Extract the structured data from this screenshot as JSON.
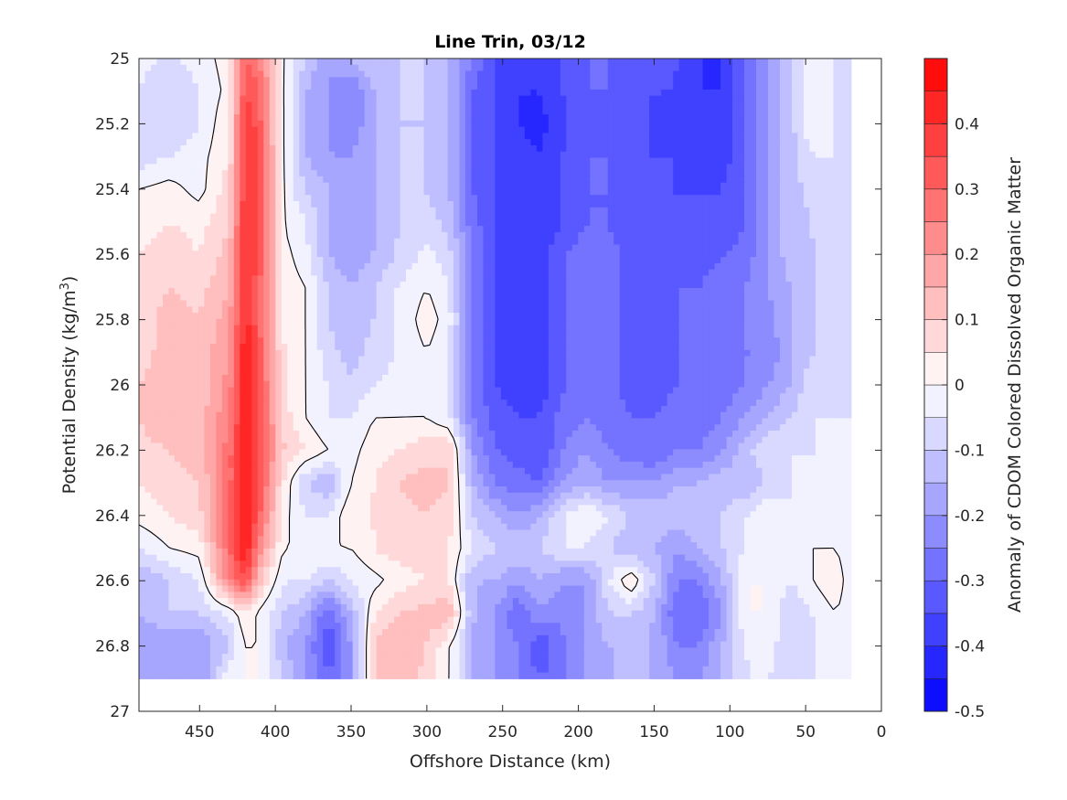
{
  "chart_data": {
    "type": "heatmap",
    "title": "Line Trin, 03/12",
    "xlabel": "Offshore Distance (km)",
    "ylabel": "Potential Density (kg/m^3)",
    "ylabel_parts": {
      "main": "Potential Density (kg/m",
      "sup": "3",
      "end": ")"
    },
    "colorbar_label": "Anomaly of CDOM Colored Dissolved Organic Matter",
    "xlim": [
      490,
      0
    ],
    "x_reversed": true,
    "ylim": [
      27,
      25
    ],
    "y_reversed": true,
    "x_ticks": [
      450,
      400,
      350,
      300,
      250,
      200,
      150,
      100,
      50,
      0
    ],
    "x_tick_labels": [
      "450",
      "400",
      "350",
      "300",
      "250",
      "200",
      "150",
      "100",
      "50",
      "0"
    ],
    "y_ticks": [
      25,
      25.2,
      25.4,
      25.6,
      25.8,
      26,
      26.2,
      26.4,
      26.6,
      26.8,
      27
    ],
    "y_tick_labels": [
      "25",
      "25.2",
      "25.4",
      "25.6",
      "25.8",
      "26",
      "26.2",
      "26.4",
      "26.6",
      "26.8",
      "27"
    ],
    "clim": [
      -0.5,
      0.5
    ],
    "colorbar_ticks": [
      0.4,
      0.3,
      0.2,
      0.1,
      0,
      -0.1,
      -0.2,
      -0.3,
      -0.4,
      -0.5
    ],
    "colorbar_tick_labels": [
      "0.4",
      "0.3",
      "0.2",
      "0.1",
      "0",
      "-0.1",
      "-0.2",
      "-0.3",
      "-0.4",
      "-0.5"
    ],
    "contour_levels": 20,
    "colormap": "blue-white-red (bwr), discrete",
    "zero_contour_color": "#000000",
    "grid": false,
    "data_extent_y": [
      25,
      26.9
    ],
    "x": [
      490,
      470,
      450,
      430,
      420,
      410,
      395,
      380,
      365,
      350,
      335,
      320,
      300,
      285,
      270,
      255,
      240,
      225,
      210,
      195,
      180,
      165,
      150,
      135,
      120,
      105,
      90,
      75,
      60,
      45,
      30,
      20
    ],
    "y": [
      25.0,
      25.1,
      25.2,
      25.3,
      25.4,
      25.5,
      25.6,
      25.7,
      25.8,
      25.9,
      26.0,
      26.1,
      26.2,
      26.3,
      26.4,
      26.5,
      26.6,
      26.7,
      26.8,
      26.9
    ],
    "values": [
      [
        -0.03,
        -0.06,
        -0.03,
        0.03,
        0.3,
        0.25,
        0.0,
        -0.1,
        -0.2,
        -0.15,
        -0.1,
        -0.1,
        -0.1,
        -0.15,
        -0.25,
        -0.35,
        -0.35,
        -0.4,
        -0.35,
        -0.3,
        -0.3,
        -0.35,
        -0.3,
        -0.35,
        -0.4,
        -0.4,
        -0.3,
        -0.2,
        -0.12,
        0.0,
        -0.05,
        -0.08
      ],
      [
        -0.05,
        -0.1,
        -0.05,
        0.02,
        0.35,
        0.3,
        0.0,
        -0.15,
        -0.2,
        -0.25,
        -0.15,
        -0.1,
        -0.1,
        -0.15,
        -0.3,
        -0.35,
        -0.4,
        -0.4,
        -0.35,
        -0.3,
        -0.3,
        -0.35,
        -0.35,
        -0.35,
        -0.4,
        -0.4,
        -0.3,
        -0.2,
        -0.12,
        0.0,
        -0.05,
        -0.1
      ],
      [
        -0.1,
        -0.1,
        -0.05,
        0.05,
        0.4,
        0.32,
        0.0,
        -0.15,
        -0.2,
        -0.25,
        -0.15,
        -0.1,
        -0.1,
        -0.15,
        -0.3,
        -0.35,
        -0.4,
        -0.42,
        -0.35,
        -0.3,
        -0.32,
        -0.35,
        -0.35,
        -0.38,
        -0.38,
        -0.38,
        -0.3,
        -0.2,
        -0.12,
        0.0,
        -0.05,
        -0.1
      ],
      [
        -0.08,
        -0.05,
        -0.02,
        0.05,
        0.4,
        0.33,
        0.0,
        -0.15,
        -0.2,
        -0.2,
        -0.15,
        -0.1,
        -0.1,
        -0.15,
        -0.3,
        -0.35,
        -0.38,
        -0.4,
        -0.35,
        -0.3,
        -0.3,
        -0.35,
        -0.35,
        -0.35,
        -0.38,
        -0.38,
        -0.3,
        -0.2,
        -0.12,
        -0.05,
        -0.05,
        -0.1
      ],
      [
        0.0,
        0.02,
        -0.02,
        0.08,
        0.4,
        0.33,
        0.0,
        -0.1,
        -0.15,
        -0.2,
        -0.15,
        -0.1,
        -0.1,
        -0.15,
        -0.3,
        -0.35,
        -0.38,
        -0.4,
        -0.35,
        -0.3,
        -0.3,
        -0.35,
        -0.35,
        -0.35,
        -0.35,
        -0.35,
        -0.3,
        -0.2,
        -0.12,
        -0.08,
        -0.05,
        -0.1
      ],
      [
        0.02,
        0.05,
        0.03,
        0.1,
        0.42,
        0.33,
        0.0,
        -0.05,
        -0.15,
        -0.2,
        -0.15,
        -0.1,
        -0.08,
        -0.12,
        -0.28,
        -0.35,
        -0.38,
        -0.4,
        -0.35,
        -0.3,
        -0.3,
        -0.35,
        -0.35,
        -0.35,
        -0.35,
        -0.35,
        -0.3,
        -0.2,
        -0.12,
        -0.1,
        -0.05,
        -0.1
      ],
      [
        0.05,
        0.08,
        0.05,
        0.12,
        0.42,
        0.33,
        0.02,
        -0.03,
        -0.15,
        -0.2,
        -0.15,
        -0.1,
        -0.03,
        -0.08,
        -0.25,
        -0.35,
        -0.38,
        -0.38,
        -0.3,
        -0.28,
        -0.28,
        -0.32,
        -0.35,
        -0.32,
        -0.32,
        -0.3,
        -0.28,
        -0.2,
        -0.12,
        -0.1,
        -0.08,
        -0.08
      ],
      [
        0.05,
        0.1,
        0.08,
        0.15,
        0.42,
        0.3,
        0.03,
        0.0,
        -0.1,
        -0.15,
        -0.1,
        -0.05,
        0.0,
        -0.05,
        -0.25,
        -0.35,
        -0.38,
        -0.38,
        -0.3,
        -0.28,
        -0.28,
        -0.32,
        -0.32,
        -0.3,
        -0.3,
        -0.28,
        -0.25,
        -0.2,
        -0.15,
        -0.1,
        -0.1,
        -0.05
      ],
      [
        0.08,
        0.12,
        0.1,
        0.18,
        0.43,
        0.3,
        0.03,
        0.0,
        -0.1,
        -0.15,
        -0.1,
        -0.05,
        0.03,
        -0.03,
        -0.25,
        -0.35,
        -0.38,
        -0.38,
        -0.3,
        -0.28,
        -0.28,
        -0.32,
        -0.32,
        -0.3,
        -0.3,
        -0.28,
        -0.25,
        -0.22,
        -0.15,
        -0.1,
        -0.1,
        -0.05
      ],
      [
        0.08,
        0.12,
        0.12,
        0.2,
        0.45,
        0.32,
        0.05,
        0.0,
        -0.08,
        -0.12,
        -0.08,
        -0.05,
        0.0,
        -0.05,
        -0.25,
        -0.35,
        -0.38,
        -0.38,
        -0.3,
        -0.28,
        -0.28,
        -0.32,
        -0.32,
        -0.3,
        -0.3,
        -0.28,
        -0.25,
        -0.25,
        -0.15,
        -0.1,
        -0.1,
        -0.05
      ],
      [
        0.1,
        0.12,
        0.12,
        0.22,
        0.45,
        0.33,
        0.05,
        0.0,
        -0.05,
        -0.1,
        -0.05,
        -0.03,
        -0.02,
        -0.05,
        -0.25,
        -0.35,
        -0.38,
        -0.38,
        -0.3,
        -0.28,
        -0.28,
        -0.32,
        -0.32,
        -0.3,
        -0.3,
        -0.28,
        -0.25,
        -0.2,
        -0.15,
        -0.05,
        -0.1,
        -0.05
      ],
      [
        0.1,
        0.15,
        0.12,
        0.25,
        0.46,
        0.33,
        0.08,
        0.0,
        -0.05,
        -0.05,
        0.0,
        0.0,
        0.0,
        -0.05,
        -0.25,
        -0.32,
        -0.35,
        -0.35,
        -0.28,
        -0.25,
        -0.28,
        -0.3,
        -0.3,
        -0.28,
        -0.28,
        -0.25,
        -0.2,
        -0.15,
        -0.1,
        -0.05,
        -0.05,
        -0.05
      ],
      [
        0.08,
        0.1,
        0.12,
        0.28,
        0.47,
        0.35,
        0.1,
        0.05,
        0.0,
        -0.02,
        0.03,
        0.05,
        0.08,
        0.1,
        -0.2,
        -0.3,
        -0.32,
        -0.35,
        -0.25,
        -0.2,
        -0.25,
        -0.28,
        -0.3,
        -0.25,
        -0.25,
        -0.2,
        -0.12,
        -0.05,
        -0.05,
        -0.05,
        -0.05,
        -0.05
      ],
      [
        0.05,
        0.08,
        0.1,
        0.28,
        0.47,
        0.33,
        0.05,
        -0.1,
        -0.15,
        0.0,
        0.05,
        0.1,
        0.12,
        0.1,
        -0.15,
        -0.25,
        -0.28,
        -0.3,
        -0.2,
        -0.15,
        -0.2,
        -0.2,
        -0.2,
        -0.15,
        -0.15,
        -0.12,
        -0.15,
        -0.1,
        -0.05,
        -0.05,
        -0.05,
        -0.05
      ],
      [
        0.02,
        0.05,
        0.08,
        0.3,
        0.48,
        0.3,
        0.02,
        -0.05,
        -0.05,
        0.05,
        0.05,
        0.08,
        0.1,
        0.08,
        -0.1,
        -0.15,
        -0.2,
        -0.15,
        -0.05,
        0.0,
        -0.05,
        -0.1,
        -0.1,
        -0.12,
        -0.1,
        -0.1,
        -0.05,
        0.0,
        -0.05,
        -0.05,
        -0.05,
        -0.05
      ],
      [
        -0.05,
        0.0,
        0.02,
        0.3,
        0.47,
        0.22,
        0.0,
        0.0,
        0.0,
        0.0,
        0.05,
        0.08,
        0.08,
        0.05,
        -0.05,
        -0.1,
        -0.1,
        -0.1,
        -0.05,
        -0.05,
        -0.1,
        -0.15,
        -0.15,
        -0.2,
        -0.15,
        -0.1,
        -0.05,
        0.0,
        0.0,
        0.0,
        0.0,
        -0.05
      ],
      [
        -0.15,
        -0.1,
        -0.05,
        0.25,
        0.35,
        0.1,
        -0.05,
        -0.05,
        -0.1,
        -0.05,
        -0.02,
        0.02,
        0.05,
        0.05,
        -0.15,
        -0.15,
        -0.2,
        -0.15,
        -0.2,
        -0.2,
        -0.05,
        0.05,
        -0.1,
        -0.25,
        -0.25,
        -0.15,
        0.0,
        0.0,
        -0.05,
        0.0,
        0.05,
        -0.05
      ],
      [
        -0.15,
        -0.1,
        -0.1,
        -0.05,
        0.05,
        -0.02,
        -0.1,
        -0.15,
        -0.3,
        -0.15,
        0.05,
        0.1,
        0.12,
        0.15,
        -0.15,
        -0.2,
        -0.3,
        -0.2,
        -0.25,
        -0.2,
        -0.1,
        -0.1,
        -0.15,
        -0.3,
        -0.3,
        -0.2,
        0.0,
        0.0,
        -0.1,
        -0.05,
        0.0,
        -0.05
      ],
      [
        -0.2,
        -0.2,
        -0.2,
        -0.1,
        0.0,
        0.0,
        -0.15,
        -0.2,
        -0.35,
        -0.2,
        0.1,
        0.15,
        0.1,
        0.0,
        -0.15,
        -0.2,
        -0.25,
        -0.35,
        -0.25,
        -0.2,
        -0.15,
        -0.15,
        -0.15,
        -0.25,
        -0.25,
        -0.15,
        -0.05,
        -0.02,
        -0.1,
        -0.05,
        0.0,
        -0.05
      ],
      [
        -0.2,
        -0.2,
        -0.2,
        0.0,
        0.0,
        0.0,
        -0.1,
        -0.2,
        -0.3,
        -0.2,
        0.1,
        0.15,
        0.08,
        0.0,
        -0.15,
        -0.2,
        -0.25,
        -0.3,
        -0.25,
        -0.2,
        -0.15,
        -0.15,
        -0.15,
        -0.2,
        -0.2,
        -0.15,
        -0.05,
        -0.05,
        -0.1,
        -0.05,
        -0.05,
        -0.05
      ]
    ]
  }
}
